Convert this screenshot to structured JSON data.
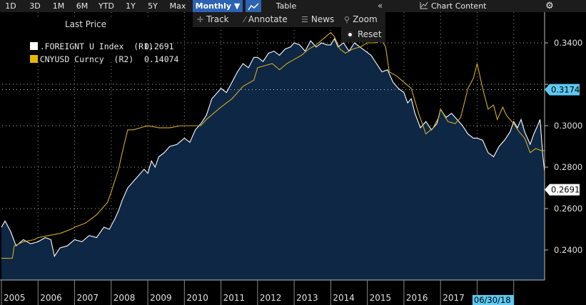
{
  "toolbar": {
    "ranges": [
      "1D",
      "3D",
      "1M",
      "6M",
      "YTD",
      "1Y",
      "5Y",
      "Max"
    ],
    "frequency": "Monthly",
    "frequency_arrow": "▼",
    "table_label": "Table",
    "collapse_icon": "«",
    "chart_content_label": "Chart Content",
    "settings_icon": "gear-icon"
  },
  "tools": {
    "track": "Track",
    "annotate": "Annotate",
    "news": "News",
    "zoom": "Zoom",
    "reset": "Reset"
  },
  "legend": {
    "title": "Last Price",
    "series": [
      {
        "name": ".FOREIGNT U Index  (R1)",
        "value": "0.2691",
        "color": "#ffffff"
      },
      {
        "name": "CNYUSD Curncy  (R2)",
        "value": "0.14074",
        "color": "#e6b800"
      }
    ]
  },
  "colors": {
    "area_fill": "#0d2744",
    "series1": "#ffffff",
    "series2": "#d4aa1e",
    "grid": "#cfcfcf",
    "badge_blue": "#5ec8f2"
  },
  "chart_data": {
    "type": "line",
    "x_tick_labels": [
      "2005",
      "2006",
      "2007",
      "2008",
      "2009",
      "2010",
      "2011",
      "2012",
      "2013",
      "2014",
      "2015",
      "2016",
      "2017"
    ],
    "current_date_label": "06/30/18",
    "y_ticks": [
      "0.3400",
      "0.3000",
      "0.2800",
      "0.2600",
      "0.2400"
    ],
    "ylim": [
      0.227,
      0.347
    ],
    "right_badges": [
      {
        "label": "0.3174",
        "value": 0.3174,
        "style": "blue"
      },
      {
        "label": "0.2691",
        "value": 0.2691,
        "style": "white"
      }
    ],
    "series": [
      {
        "name": ".FOREIGNT U Index  (R1)",
        "style": "area",
        "points": [
          [
            2005.0,
            0.251
          ],
          [
            2005.1,
            0.254
          ],
          [
            2005.25,
            0.249
          ],
          [
            2005.4,
            0.242
          ],
          [
            2005.6,
            0.245
          ],
          [
            2005.8,
            0.243
          ],
          [
            2006.0,
            0.244
          ],
          [
            2006.2,
            0.246
          ],
          [
            2006.35,
            0.245
          ],
          [
            2006.45,
            0.237
          ],
          [
            2006.6,
            0.241
          ],
          [
            2006.8,
            0.242
          ],
          [
            2007.0,
            0.245
          ],
          [
            2007.2,
            0.244
          ],
          [
            2007.4,
            0.247
          ],
          [
            2007.6,
            0.246
          ],
          [
            2007.8,
            0.251
          ],
          [
            2007.95,
            0.25
          ],
          [
            2008.1,
            0.255
          ],
          [
            2008.2,
            0.259
          ],
          [
            2008.3,
            0.264
          ],
          [
            2008.45,
            0.27
          ],
          [
            2008.6,
            0.273
          ],
          [
            2008.75,
            0.276
          ],
          [
            2008.9,
            0.279
          ],
          [
            2009.0,
            0.277
          ],
          [
            2009.1,
            0.283
          ],
          [
            2009.2,
            0.28
          ],
          [
            2009.3,
            0.285
          ],
          [
            2009.45,
            0.287
          ],
          [
            2009.6,
            0.29
          ],
          [
            2009.8,
            0.291
          ],
          [
            2010.0,
            0.294
          ],
          [
            2010.15,
            0.292
          ],
          [
            2010.3,
            0.298
          ],
          [
            2010.45,
            0.301
          ],
          [
            2010.6,
            0.305
          ],
          [
            2010.75,
            0.313
          ],
          [
            2010.9,
            0.316
          ],
          [
            2011.0,
            0.318
          ],
          [
            2011.15,
            0.316
          ],
          [
            2011.3,
            0.321
          ],
          [
            2011.45,
            0.326
          ],
          [
            2011.6,
            0.33
          ],
          [
            2011.75,
            0.328
          ],
          [
            2011.9,
            0.333
          ],
          [
            2012.0,
            0.333
          ],
          [
            2012.15,
            0.331
          ],
          [
            2012.3,
            0.335
          ],
          [
            2012.45,
            0.336
          ],
          [
            2012.6,
            0.334
          ],
          [
            2012.75,
            0.337
          ],
          [
            2012.9,
            0.338
          ],
          [
            2013.0,
            0.34
          ],
          [
            2013.15,
            0.339
          ],
          [
            2013.3,
            0.336
          ],
          [
            2013.45,
            0.341
          ],
          [
            2013.6,
            0.338
          ],
          [
            2013.75,
            0.34
          ],
          [
            2013.9,
            0.339
          ],
          [
            2014.0,
            0.339
          ],
          [
            2014.1,
            0.342
          ],
          [
            2014.2,
            0.338
          ],
          [
            2014.35,
            0.34
          ],
          [
            2014.5,
            0.336
          ],
          [
            2014.65,
            0.34
          ],
          [
            2014.8,
            0.338
          ],
          [
            2014.95,
            0.336
          ],
          [
            2015.1,
            0.334
          ],
          [
            2015.25,
            0.33
          ],
          [
            2015.4,
            0.326
          ],
          [
            2015.55,
            0.327
          ],
          [
            2015.7,
            0.321
          ],
          [
            2015.85,
            0.318
          ],
          [
            2016.0,
            0.316
          ],
          [
            2016.1,
            0.311
          ],
          [
            2016.2,
            0.313
          ],
          [
            2016.3,
            0.306
          ],
          [
            2016.45,
            0.299
          ],
          [
            2016.6,
            0.302
          ],
          [
            2016.75,
            0.298
          ],
          [
            2016.9,
            0.301
          ],
          [
            2017.0,
            0.308
          ],
          [
            2017.15,
            0.304
          ],
          [
            2017.3,
            0.306
          ],
          [
            2017.45,
            0.303
          ],
          [
            2017.6,
            0.3
          ],
          [
            2017.75,
            0.296
          ],
          [
            2017.9,
            0.294
          ],
          [
            2018.0,
            0.294
          ],
          [
            2018.15,
            0.293
          ],
          [
            2018.3,
            0.287
          ],
          [
            2018.45,
            0.285
          ],
          [
            2018.6,
            0.29
          ],
          [
            2018.75,
            0.293
          ],
          [
            2018.9,
            0.297
          ],
          [
            2019.0,
            0.302
          ],
          [
            2019.1,
            0.299
          ],
          [
            2019.2,
            0.303
          ],
          [
            2019.3,
            0.297
          ],
          [
            2019.45,
            0.291
          ],
          [
            2019.55,
            0.296
          ],
          [
            2019.65,
            0.3
          ],
          [
            2019.72,
            0.303
          ],
          [
            2019.8,
            0.285
          ],
          [
            2019.9,
            0.2691
          ]
        ]
      },
      {
        "name": "CNYUSD Curncy  (R2)",
        "style": "line",
        "points": [
          [
            2005.0,
            0.236
          ],
          [
            2005.3,
            0.236
          ],
          [
            2005.35,
            0.242
          ],
          [
            2005.6,
            0.244
          ],
          [
            2005.9,
            0.245
          ],
          [
            2006.0,
            0.246
          ],
          [
            2006.3,
            0.247
          ],
          [
            2006.6,
            0.248
          ],
          [
            2006.9,
            0.25
          ],
          [
            2007.0,
            0.251
          ],
          [
            2007.3,
            0.253
          ],
          [
            2007.6,
            0.257
          ],
          [
            2007.9,
            0.263
          ],
          [
            2008.0,
            0.268
          ],
          [
            2008.2,
            0.279
          ],
          [
            2008.3,
            0.287
          ],
          [
            2008.45,
            0.298
          ],
          [
            2008.6,
            0.298
          ],
          [
            2008.8,
            0.299
          ],
          [
            2009.0,
            0.3
          ],
          [
            2009.3,
            0.299
          ],
          [
            2009.6,
            0.299
          ],
          [
            2009.9,
            0.3
          ],
          [
            2010.0,
            0.3
          ],
          [
            2010.3,
            0.3
          ],
          [
            2010.45,
            0.3
          ],
          [
            2010.6,
            0.303
          ],
          [
            2010.8,
            0.306
          ],
          [
            2011.0,
            0.309
          ],
          [
            2011.3,
            0.313
          ],
          [
            2011.6,
            0.319
          ],
          [
            2011.9,
            0.322
          ],
          [
            2012.0,
            0.328
          ],
          [
            2012.2,
            0.329
          ],
          [
            2012.4,
            0.33
          ],
          [
            2012.6,
            0.327
          ],
          [
            2012.8,
            0.33
          ],
          [
            2013.0,
            0.332
          ],
          [
            2013.2,
            0.334
          ],
          [
            2013.4,
            0.337
          ],
          [
            2013.6,
            0.339
          ],
          [
            2013.8,
            0.342
          ],
          [
            2014.0,
            0.345
          ],
          [
            2014.1,
            0.343
          ],
          [
            2014.25,
            0.337
          ],
          [
            2014.4,
            0.335
          ],
          [
            2014.6,
            0.337
          ],
          [
            2014.8,
            0.338
          ],
          [
            2015.0,
            0.34
          ],
          [
            2015.2,
            0.34
          ],
          [
            2015.4,
            0.341
          ],
          [
            2015.5,
            0.338
          ],
          [
            2015.6,
            0.326
          ],
          [
            2015.8,
            0.324
          ],
          [
            2016.0,
            0.321
          ],
          [
            2016.2,
            0.318
          ],
          [
            2016.4,
            0.306
          ],
          [
            2016.6,
            0.296
          ],
          [
            2016.8,
            0.299
          ],
          [
            2016.95,
            0.304
          ],
          [
            2017.0,
            0.308
          ],
          [
            2017.2,
            0.302
          ],
          [
            2017.4,
            0.301
          ],
          [
            2017.55,
            0.304
          ],
          [
            2017.75,
            0.318
          ],
          [
            2017.9,
            0.323
          ],
          [
            2018.0,
            0.33
          ],
          [
            2018.15,
            0.318
          ],
          [
            2018.3,
            0.308
          ],
          [
            2018.45,
            0.31
          ],
          [
            2018.55,
            0.303
          ],
          [
            2018.7,
            0.309
          ],
          [
            2018.8,
            0.305
          ],
          [
            2019.0,
            0.301
          ],
          [
            2019.15,
            0.297
          ],
          [
            2019.3,
            0.294
          ],
          [
            2019.45,
            0.287
          ],
          [
            2019.6,
            0.289
          ],
          [
            2019.75,
            0.288
          ],
          [
            2019.85,
            0.288
          ],
          [
            2019.95,
            0.287
          ]
        ]
      }
    ]
  }
}
